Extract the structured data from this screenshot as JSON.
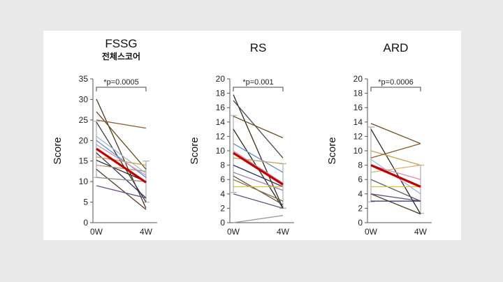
{
  "chart_data": [
    {
      "type": "line",
      "title": "FSSG",
      "subtitle": "전체스코어",
      "ylabel": "Score",
      "pvalue": "*p=0.0005",
      "categories": [
        "0W",
        "4W"
      ],
      "ylim": [
        0,
        35
      ],
      "yticks": [
        "0",
        "5",
        "10",
        "15",
        "20",
        "25",
        "30",
        "35"
      ],
      "ytick_values": [
        0,
        5,
        10,
        15,
        20,
        25,
        30,
        35
      ],
      "errorbars": [
        {
          "x": "0W",
          "low": 11,
          "high": 24.7
        },
        {
          "x": "4W",
          "low": 5,
          "high": 15
        }
      ],
      "mean": {
        "values": [
          18,
          9.8
        ],
        "color": "#c00000"
      },
      "series": [
        {
          "values": [
            30.1,
            3.5
          ],
          "color": "#4a3a20"
        },
        {
          "values": [
            27,
            13
          ],
          "color": "#6b4a1e"
        },
        {
          "values": [
            25,
            23
          ],
          "color": "#8b5a2b"
        },
        {
          "values": [
            24.5,
            5
          ],
          "color": "#3a3a3a"
        },
        {
          "values": [
            21,
            12
          ],
          "color": "#9fb8d8"
        },
        {
          "values": [
            20,
            11
          ],
          "color": "#5b8fd6"
        },
        {
          "values": [
            19,
            11.5
          ],
          "color": "#d98cb3"
        },
        {
          "values": [
            17,
            6
          ],
          "color": "#2d2d6b"
        },
        {
          "values": [
            16,
            14
          ],
          "color": "#c9a050"
        },
        {
          "values": [
            15.2,
            10
          ],
          "color": "#2a2a2a"
        },
        {
          "values": [
            14,
            12.5
          ],
          "color": "#b0a070"
        },
        {
          "values": [
            13,
            3.2
          ],
          "color": "#5a3a2a"
        },
        {
          "values": [
            11,
            10
          ],
          "color": "#8a8a8a"
        },
        {
          "values": [
            9,
            6
          ],
          "color": "#6a4f8a"
        }
      ]
    },
    {
      "type": "line",
      "title": "RS",
      "ylabel": "Score",
      "pvalue": "*p=0.001",
      "categories": [
        "0W",
        "4W"
      ],
      "ylim": [
        0,
        20
      ],
      "yticks": [
        "0",
        "2",
        "4",
        "6",
        "8",
        "10",
        "12",
        "14",
        "16",
        "18",
        "20"
      ],
      "ytick_values": [
        0,
        2,
        4,
        6,
        8,
        10,
        12,
        14,
        16,
        18,
        20
      ],
      "errorbars": [
        {
          "x": "0W",
          "low": 4.2,
          "high": 14.9
        },
        {
          "x": "4W",
          "low": 2,
          "high": 8.2
        }
      ],
      "mean": {
        "values": [
          9.7,
          5.3
        ],
        "color": "#c00000"
      },
      "series": [
        {
          "values": [
            17.8,
            2
          ],
          "color": "#3a2a1a"
        },
        {
          "values": [
            17,
            9
          ],
          "color": "#4a4a4a"
        },
        {
          "values": [
            14.8,
            11.8
          ],
          "color": "#6b4a1e"
        },
        {
          "values": [
            13,
            2
          ],
          "color": "#2a2a2a"
        },
        {
          "values": [
            11,
            7
          ],
          "color": "#5b8fd6"
        },
        {
          "values": [
            10,
            5.5
          ],
          "color": "#d98cb3"
        },
        {
          "values": [
            9,
            8.2
          ],
          "color": "#c9a050"
        },
        {
          "values": [
            8,
            5
          ],
          "color": "#2d2d6b"
        },
        {
          "values": [
            7,
            4.5
          ],
          "color": "#9f7fb0"
        },
        {
          "values": [
            6.5,
            2.5
          ],
          "color": "#555555"
        },
        {
          "values": [
            6,
            3
          ],
          "color": "#8a6a3a"
        },
        {
          "values": [
            5,
            5
          ],
          "color": "#d8c040"
        },
        {
          "values": [
            4,
            2
          ],
          "color": "#6a4f8a"
        },
        {
          "values": [
            0,
            1
          ],
          "color": "#999999"
        }
      ]
    },
    {
      "type": "line",
      "title": "ARD",
      "ylabel": "Score",
      "pvalue": "*p=0.0006",
      "categories": [
        "0W",
        "4W"
      ],
      "ylim": [
        0,
        20
      ],
      "yticks": [
        "0",
        "2",
        "4",
        "6",
        "8",
        "10",
        "12",
        "14",
        "16",
        "18",
        "20"
      ],
      "ytick_values": [
        0,
        2,
        4,
        6,
        8,
        10,
        12,
        14,
        16,
        18,
        20
      ],
      "errorbars": [
        {
          "x": "0W",
          "low": 2.9,
          "high": 13.3
        },
        {
          "x": "4W",
          "low": 1.3,
          "high": 8
        }
      ],
      "mean": {
        "values": [
          8,
          5
        ],
        "color": "#c00000"
      },
      "series": [
        {
          "values": [
            13.8,
            11
          ],
          "color": "#6b4a1e"
        },
        {
          "values": [
            13,
            1.2
          ],
          "color": "#2a2a2a"
        },
        {
          "values": [
            10,
            8
          ],
          "color": "#c9a050"
        },
        {
          "values": [
            9,
            11
          ],
          "color": "#8b5a2b"
        },
        {
          "values": [
            8.8,
            4
          ],
          "color": "#9fb8d8"
        },
        {
          "values": [
            8,
            6
          ],
          "color": "#d98cb3"
        },
        {
          "values": [
            7,
            8
          ],
          "color": "#e0b070"
        },
        {
          "values": [
            6,
            3
          ],
          "color": "#5a5a5a"
        },
        {
          "values": [
            5,
            5
          ],
          "color": "#d8c040"
        },
        {
          "values": [
            4,
            1.2
          ],
          "color": "#4a3a20"
        },
        {
          "values": [
            4,
            3
          ],
          "color": "#6a4f8a"
        },
        {
          "values": [
            3,
            3
          ],
          "color": "#2d2d6b"
        }
      ]
    }
  ]
}
